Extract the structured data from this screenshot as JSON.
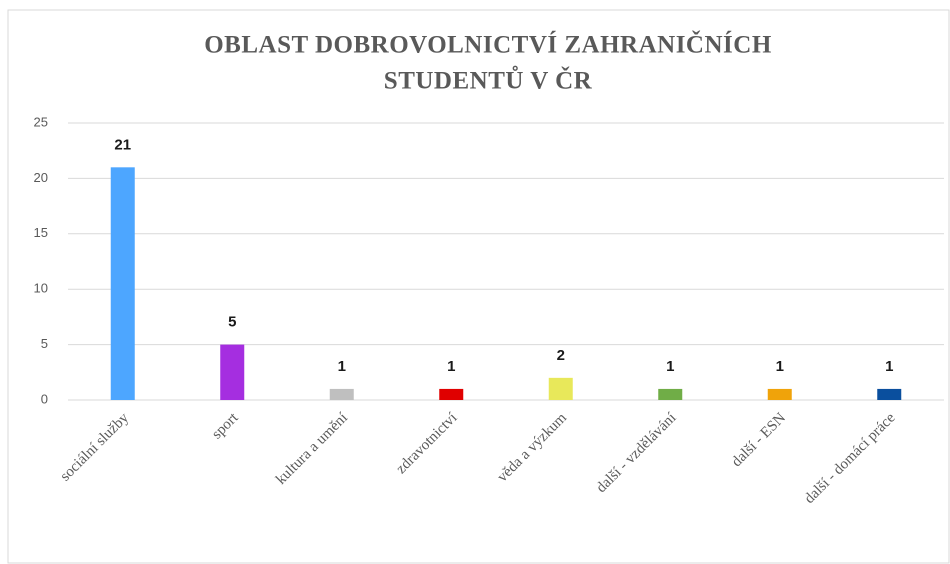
{
  "chart_data": {
    "type": "bar",
    "title": [
      "OBLAST DOBROVOLNICTVÍ ZAHRANIČNÍCH",
      "STUDENTŮ V ČR"
    ],
    "categories": [
      "sociální služby",
      "sport",
      "kultura a umění",
      "zdravotnictví",
      "věda a výzkum",
      "další - vzdělávání",
      "další - ESN",
      "další - domácí práce"
    ],
    "values": [
      21,
      5,
      1,
      1,
      2,
      1,
      1,
      1
    ],
    "colors": [
      "#4da6ff",
      "#a52ee0",
      "#bfbfbf",
      "#e00000",
      "#e8e85a",
      "#70ad47",
      "#f0a30a",
      "#0a4f9e"
    ],
    "ylim": [
      0,
      25
    ],
    "yticks": [
      0,
      5,
      10,
      15,
      20,
      25
    ],
    "grid": true
  }
}
